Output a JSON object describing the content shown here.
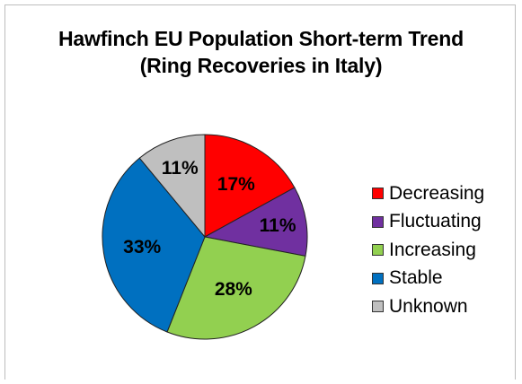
{
  "chart_data": {
    "type": "pie",
    "title": "Hawfinch EU Population Short-term Trend",
    "subtitle": "(Ring Recoveries in Italy)",
    "slices": [
      {
        "label": "Decreasing",
        "value": 17,
        "display": "17%",
        "color": "#ff0000"
      },
      {
        "label": "Fluctuating",
        "value": 11,
        "display": "11%",
        "color": "#7030a0"
      },
      {
        "label": "Increasing",
        "value": 28,
        "display": "28%",
        "color": "#92d050"
      },
      {
        "label": "Stable",
        "value": 33,
        "display": "33%",
        "color": "#0070c0"
      },
      {
        "label": "Unknown",
        "value": 11,
        "display": "11%",
        "color": "#bfbfbf"
      }
    ],
    "legend_position": "right"
  }
}
